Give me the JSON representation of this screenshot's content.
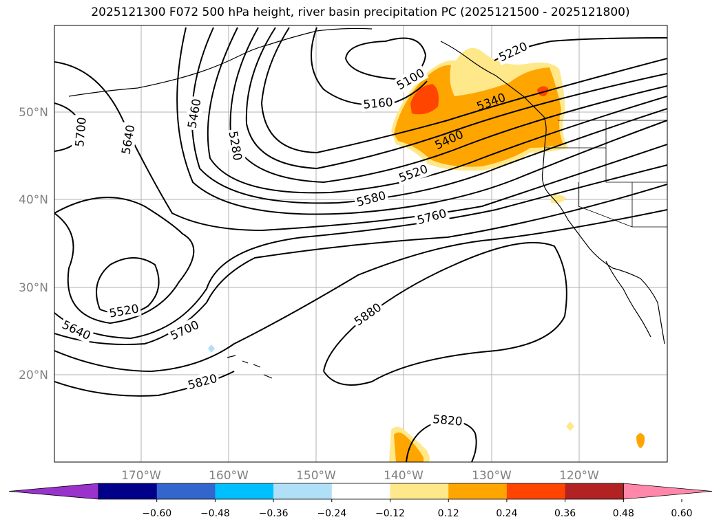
{
  "title": "2025121300 F072 500 hPa height, river basin precipitation PC (2025121500 - 2025121800)",
  "latitude_labels": [
    "50°N",
    "40°N",
    "30°N",
    "20°N"
  ],
  "longitude_labels": [
    "170°W",
    "160°W",
    "150°W",
    "140°W",
    "130°W",
    "120°W"
  ],
  "contour_labels": [
    {
      "id": "c5100",
      "text": "5100",
      "rot": -30
    },
    {
      "id": "c5160",
      "text": "5160",
      "rot": -5
    },
    {
      "id": "c5220",
      "text": "5220",
      "rot": -25
    },
    {
      "id": "c5340",
      "text": "5340",
      "rot": -20
    },
    {
      "id": "c5400",
      "text": "5400",
      "rot": -25
    },
    {
      "id": "c5520a",
      "text": "5520",
      "rot": -20
    },
    {
      "id": "c5580",
      "text": "5580",
      "rot": -15
    },
    {
      "id": "c5760",
      "text": "5760",
      "rot": -15
    },
    {
      "id": "c5460",
      "text": "5460",
      "rot": -80
    },
    {
      "id": "c5280",
      "text": "5280",
      "rot": 80
    },
    {
      "id": "c5700a",
      "text": "5700",
      "rot": -85
    },
    {
      "id": "c5640a",
      "text": "5640",
      "rot": -80
    },
    {
      "id": "c5520b",
      "text": "5520",
      "rot": -10
    },
    {
      "id": "c5640b",
      "text": "5640",
      "rot": 25
    },
    {
      "id": "c5700b",
      "text": "5700",
      "rot": -25
    },
    {
      "id": "c5820a",
      "text": "5820",
      "rot": -15
    },
    {
      "id": "c5880",
      "text": "5880",
      "rot": -35
    },
    {
      "id": "c5820b",
      "text": "5820",
      "rot": 5
    }
  ],
  "colorbar": {
    "colors": [
      "#9933cc",
      "#00008b",
      "#3366cc",
      "#00bfff",
      "#b0e0f8",
      "#ffffff",
      "#ffe88a",
      "#ffa500",
      "#ff4500",
      "#b22222",
      "#ff88aa"
    ],
    "tick_labels": [
      "−0.60",
      "−0.48",
      "−0.36",
      "−0.24",
      "−0.12",
      "0.12",
      "0.24",
      "0.36",
      "0.48",
      "0.60"
    ]
  }
}
